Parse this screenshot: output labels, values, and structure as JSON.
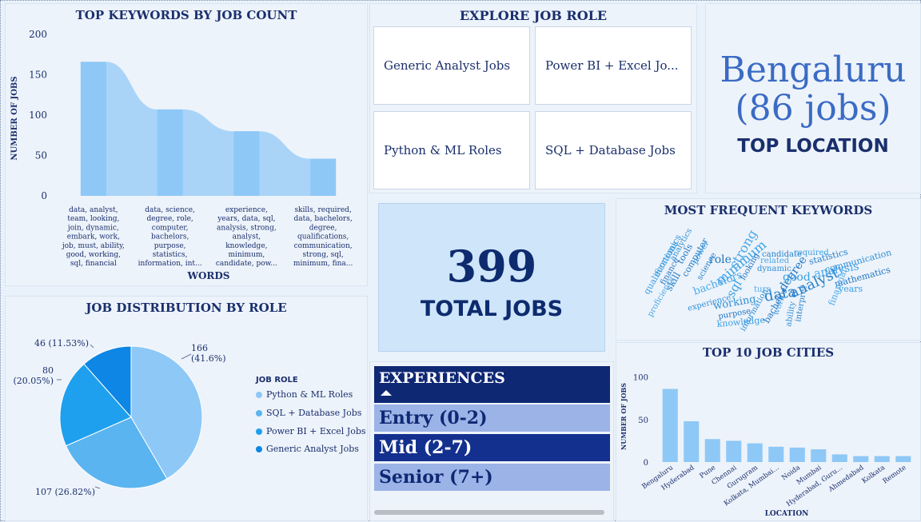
{
  "keywords_chart": {
    "title": "TOP KEYWORDS BY JOB COUNT",
    "ylabel": "NUMBER OF JOBS",
    "xlabel": "WORDS",
    "yticks": [
      "0",
      "50",
      "100",
      "150",
      "200"
    ],
    "chart_data": {
      "type": "area",
      "categories": [
        [
          "data, analyst,",
          "team, looking,",
          "join, dynamic,",
          "embark, work,",
          "job, must, ability,",
          "good, working,",
          "sql, financial"
        ],
        [
          "data, science,",
          "degree, role,",
          "computer,",
          "bachelors,",
          "purpose,",
          "statistics,",
          "information, int..."
        ],
        [
          "experience,",
          "years, data, sql,",
          "analysis, strong,",
          "analyst,",
          "knowledge,",
          "minimum,",
          "candidate, pow..."
        ],
        [
          "skills, required,",
          "data, bachelors,",
          "degree,",
          "qualifications,",
          "communication,",
          "strong, sql,",
          "minimum, fina..."
        ]
      ],
      "values": [
        166,
        107,
        80,
        46
      ],
      "ylim": [
        0,
        200
      ],
      "title": "TOP KEYWORDS BY JOB COUNT",
      "xlabel": "WORDS",
      "ylabel": "NUMBER OF JOBS"
    }
  },
  "explore": {
    "title": "EXPLORE JOB ROLE",
    "tiles": [
      "Generic Analyst Jobs",
      "Power BI + Excel Jo...",
      "Python & ML Roles",
      "SQL + Database Jobs"
    ]
  },
  "top_location": {
    "city": "Bengaluru",
    "jobs": "(86 jobs)",
    "label": "TOP LOCATION"
  },
  "total": {
    "value": "399",
    "label": "TOTAL JOBS"
  },
  "wordcloud": {
    "title": "MOST FREQUENT KEYWORDS",
    "words": [
      "economics",
      "finance",
      "qualifications",
      "skill",
      "proficiency",
      "analytics",
      "tools",
      "power",
      "computer",
      "bachelors",
      "experience",
      "role",
      "minimum",
      "science",
      "strong",
      "working",
      "purpose",
      "knowledge",
      "candidate",
      "related",
      "dynamic",
      "looking",
      "sql",
      "data",
      "turn",
      "information",
      "degree",
      "good",
      "analyst",
      "work",
      "ability",
      "bachelor",
      "required",
      "statistics",
      "analysis",
      "communication",
      "mathematics",
      "years",
      "interpret",
      "financial"
    ]
  },
  "distribution": {
    "title": "JOB DISTRIBUTION BY ROLE",
    "legend_title": "JOB ROLE",
    "chart_data": {
      "type": "pie",
      "labels": [
        "Python & ML Roles",
        "SQL + Database Jobs",
        "Power BI + Excel Jobs",
        "Generic Analyst Jobs"
      ],
      "values": [
        166,
        107,
        80,
        46
      ],
      "percents": [
        "41.6%",
        "26.82%",
        "20.05%",
        "11.53%"
      ],
      "colors": [
        "#8ec8f6",
        "#5ab4f0",
        "#1ea0ee",
        "#0d86e6"
      ]
    },
    "slice_labels": [
      [
        "166",
        "(41.6%)"
      ],
      [
        "107 (26.82%)"
      ],
      [
        "80",
        "(20.05%)"
      ],
      [
        "46 (11.53%)"
      ]
    ]
  },
  "experience": {
    "title": "EXPERIENCES",
    "items": [
      "Entry (0-2)",
      "Mid (2-7)",
      "Senior (7+)"
    ],
    "selected": 1
  },
  "cities_chart": {
    "title": "TOP 10 JOB CITIES",
    "ylabel": "NUMBER OF JOBS",
    "xlabel": "LOCATION",
    "yticks": [
      "0",
      "50",
      "100"
    ],
    "chart_data": {
      "type": "bar",
      "categories": [
        "Bengaluru",
        "Hyderabad",
        "Pune",
        "Chennai",
        "Gurugram",
        "Kolkata, Mumbai...",
        "Noida",
        "Mumbai",
        "Hyderabad, Guru...",
        "Ahmedabad",
        "Kolkata",
        "Remote"
      ],
      "values": [
        86,
        48,
        27,
        25,
        22,
        18,
        17,
        15,
        9,
        7,
        7,
        7
      ],
      "ylim": [
        0,
        110
      ],
      "title": "TOP 10 JOB CITIES",
      "xlabel": "LOCATION",
      "ylabel": "NUMBER OF JOBS"
    }
  },
  "colors": {
    "navy": "#1a2f6d",
    "bar_light": "#8ec8f6",
    "exp_selected": "#14308e",
    "exp_unselected": "#9bb3e6"
  }
}
